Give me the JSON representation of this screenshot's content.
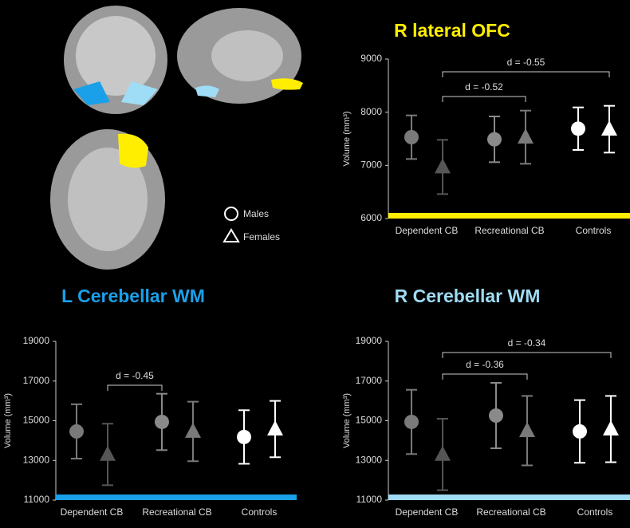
{
  "chart_data": [
    {
      "type": "errorbar",
      "title": "R lateral OFC",
      "accent_color": "#ffee00",
      "y_label": "Volume (mm³)",
      "categories": [
        "Dependent CB",
        "Recreational CB",
        "Controls"
      ],
      "series": [
        {
          "name": "Males",
          "marker": "circle",
          "colors": [
            "#7a7a7a",
            "#8a8a8a",
            "#ffffff"
          ],
          "values": [
            7530,
            7490,
            7690
          ],
          "errors": [
            410,
            430,
            400
          ]
        },
        {
          "name": "Females",
          "marker": "triangle",
          "colors": [
            "#555555",
            "#7a7a7a",
            "#ffffff"
          ],
          "values": [
            6970,
            7530,
            7680
          ],
          "errors": [
            510,
            500,
            440
          ]
        }
      ],
      "annotations": [
        "d = -0.55",
        "d = -0.52"
      ],
      "ylim": [
        6000,
        9000
      ],
      "yticks": [
        6000,
        7000,
        8000,
        9000
      ]
    },
    {
      "type": "errorbar",
      "title": "L Cerebellar WM",
      "accent_color": "#1aa0e8",
      "y_label": "Volume (mm³)",
      "categories": [
        "Dependent CB",
        "Recreational CB",
        "Controls"
      ],
      "series": [
        {
          "name": "Males",
          "marker": "circle",
          "colors": [
            "#7a7a7a",
            "#8a8a8a",
            "#ffffff"
          ],
          "values": [
            14460,
            14940,
            14180
          ],
          "errors": [
            1370,
            1420,
            1350
          ]
        },
        {
          "name": "Females",
          "marker": "triangle",
          "colors": [
            "#555555",
            "#7a7a7a",
            "#ffffff"
          ],
          "values": [
            13300,
            14460,
            14580
          ],
          "errors": [
            1550,
            1500,
            1420
          ]
        }
      ],
      "annotations": [
        "d = -0.45"
      ],
      "ylim": [
        11000,
        19000
      ],
      "yticks": [
        11000,
        13000,
        15000,
        17000,
        19000
      ]
    },
    {
      "type": "errorbar",
      "title": "R Cerebellar WM",
      "accent_color": "#9fdcf5",
      "y_label": "Volume (mm³)",
      "categories": [
        "Dependent CB",
        "Recreational CB",
        "Controls"
      ],
      "series": [
        {
          "name": "Males",
          "marker": "circle",
          "colors": [
            "#7a7a7a",
            "#8a8a8a",
            "#ffffff"
          ],
          "values": [
            14940,
            15260,
            14460
          ],
          "errors": [
            1620,
            1650,
            1580
          ]
        },
        {
          "name": "Females",
          "marker": "triangle",
          "colors": [
            "#555555",
            "#7a7a7a",
            "#ffffff"
          ],
          "values": [
            13300,
            14500,
            14580
          ],
          "errors": [
            1800,
            1750,
            1670
          ]
        }
      ],
      "annotations": [
        "d = -0.34",
        "d = -0.36"
      ],
      "ylim": [
        11000,
        19000
      ],
      "yticks": [
        11000,
        13000,
        15000,
        17000,
        19000
      ]
    }
  ]
}
